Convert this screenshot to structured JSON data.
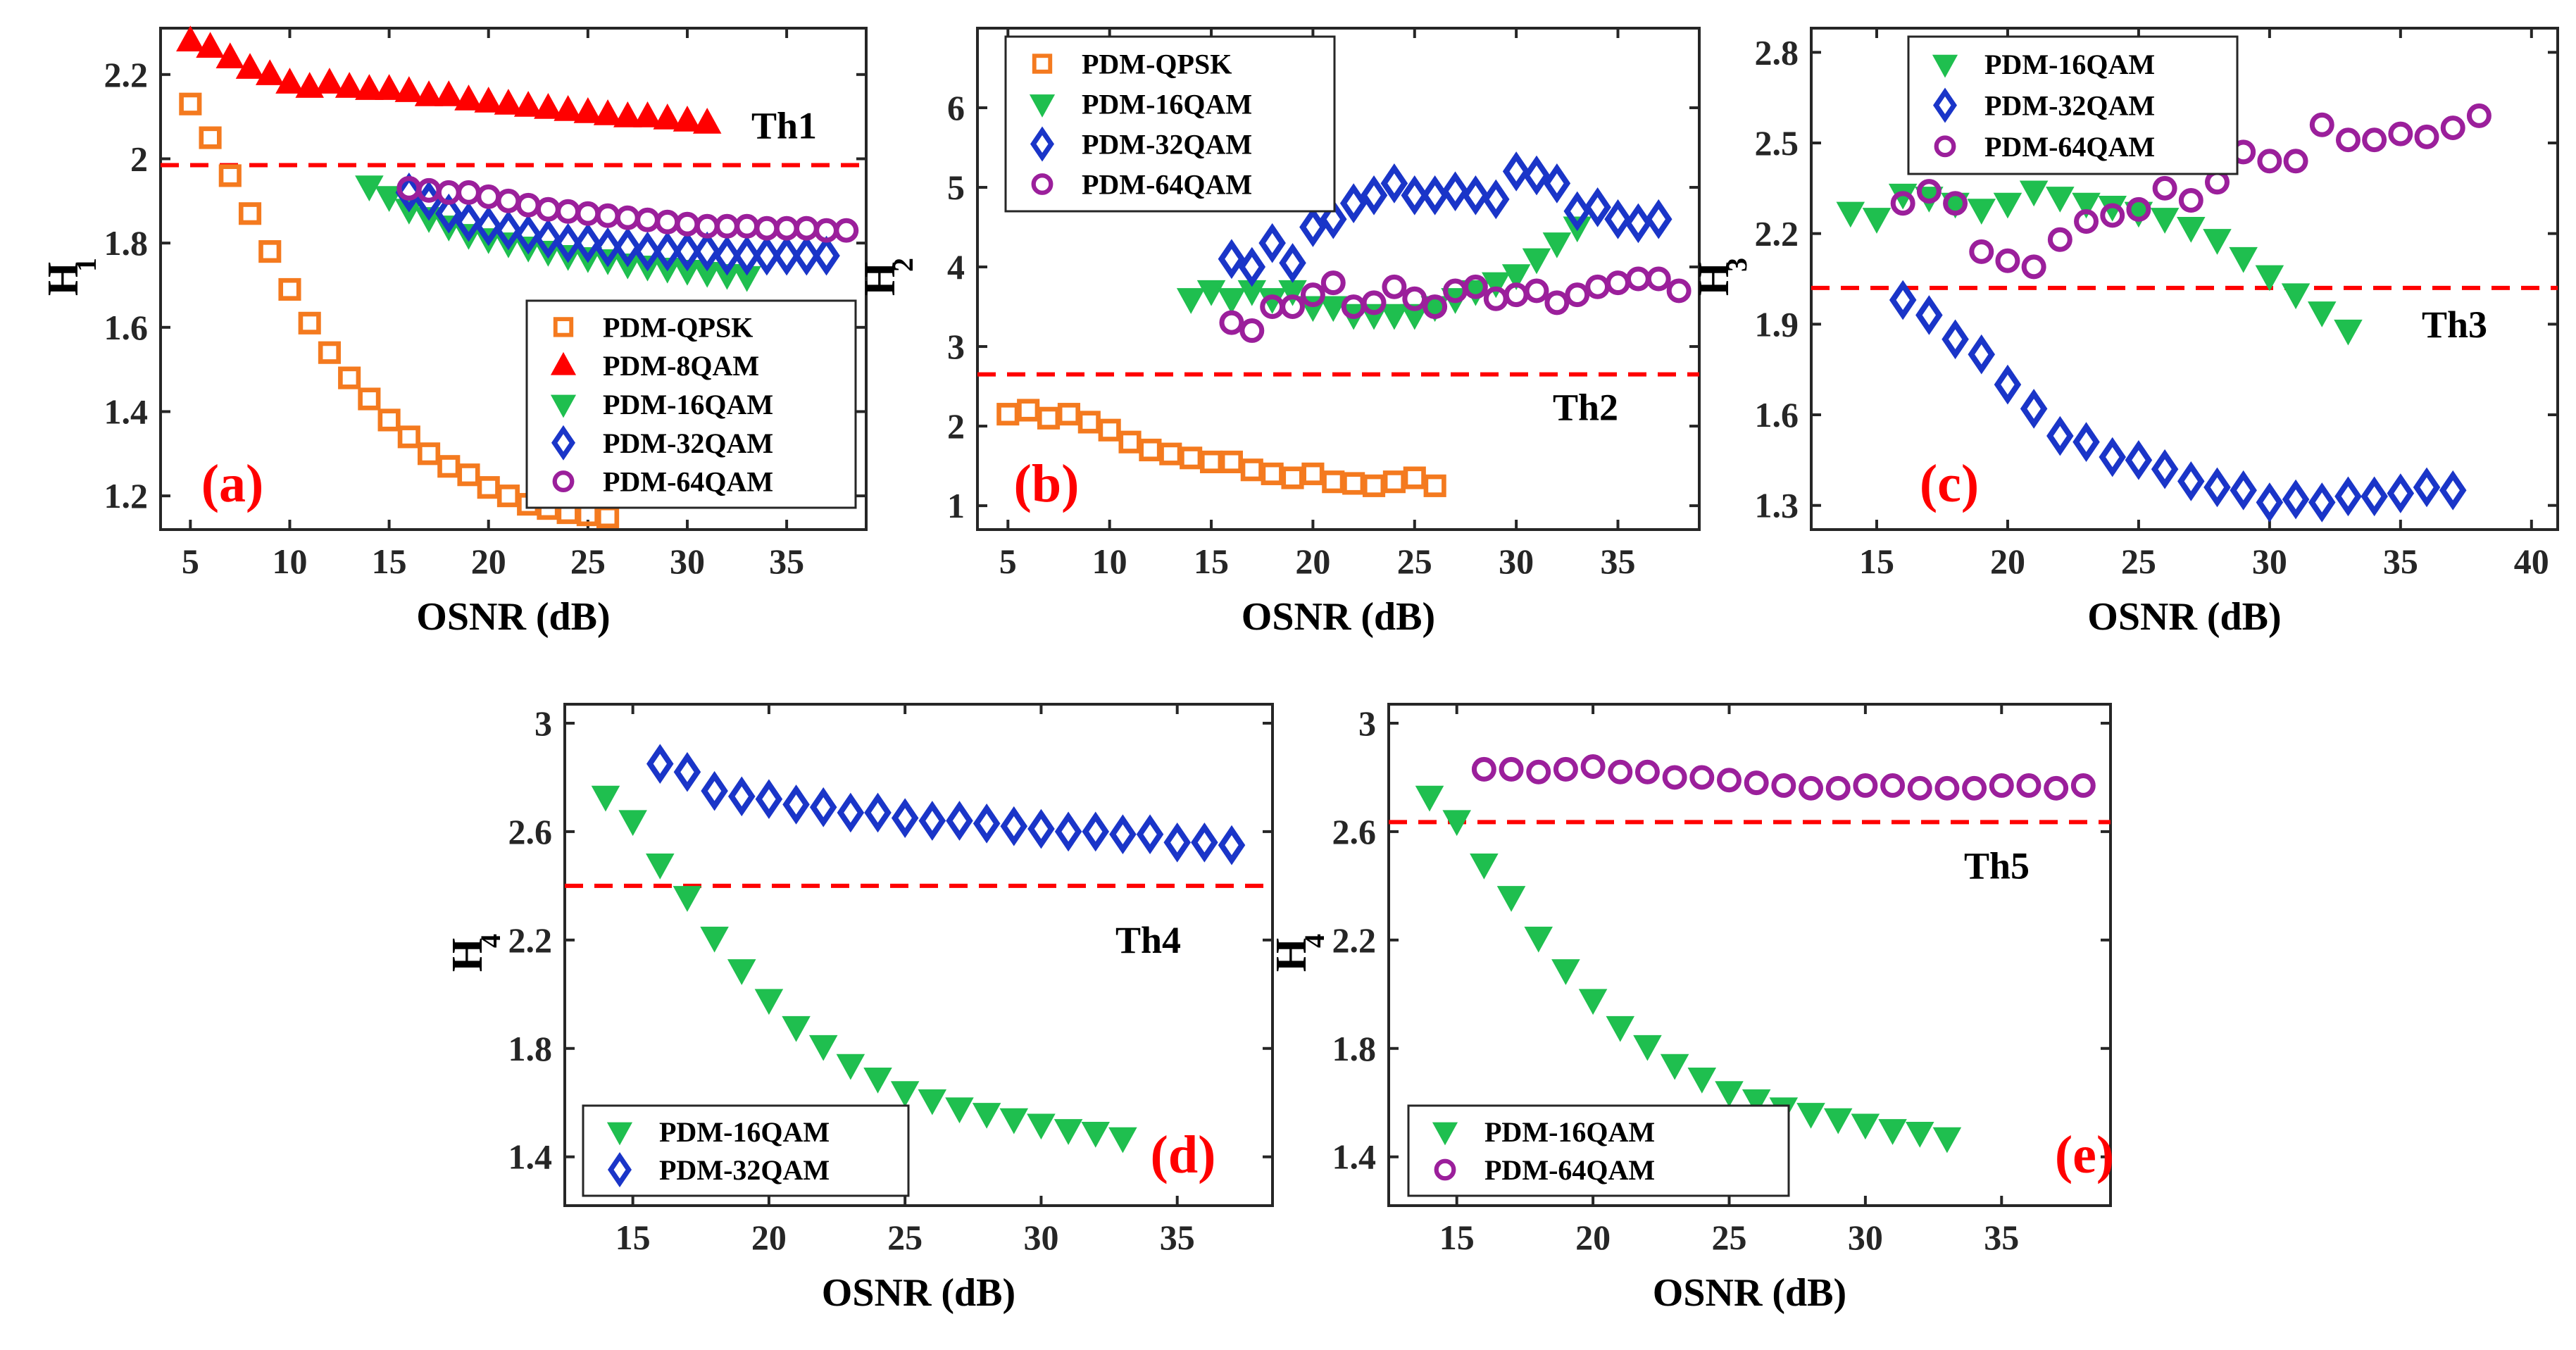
{
  "colors": {
    "PDM-QPSK": "#f47a1f",
    "PDM-8QAM": "#ff0000",
    "PDM-16QAM": "#1fbf4f",
    "PDM-32QAM": "#1a35c8",
    "PDM-64QAM": "#9b1f9b",
    "threshold": "#ff0000"
  },
  "markers": {
    "PDM-QPSK": "square",
    "PDM-8QAM": "triangle-up",
    "PDM-16QAM": "triangle-down",
    "PDM-32QAM": "diamond",
    "PDM-64QAM": "circle"
  },
  "chart_data": [
    {
      "type": "scatter",
      "panel_label": "(a)",
      "xlabel": "OSNR (dB)",
      "ylabel": "H",
      "ylabel_sub": "1",
      "xlim": [
        3.5,
        39
      ],
      "ylim": [
        1.12,
        2.31
      ],
      "xticks": [
        5,
        10,
        15,
        20,
        25,
        30,
        35
      ],
      "yticks": [
        1.2,
        1.4,
        1.6,
        1.8,
        2,
        2.2
      ],
      "ytick_labels": [
        "1.2",
        "1.4",
        "1.6",
        "1.8",
        "2",
        "2.2"
      ],
      "threshold": {
        "label": "Th1",
        "value": 1.985
      },
      "legend_position": "lower-right",
      "series": [
        {
          "name": "PDM-QPSK",
          "x": [
            5,
            6,
            7,
            8,
            9,
            10,
            11,
            12,
            13,
            14,
            15,
            16,
            17,
            18,
            19,
            20,
            21,
            22,
            23,
            24,
            25,
            26
          ],
          "y": [
            2.13,
            2.05,
            1.96,
            1.87,
            1.78,
            1.69,
            1.61,
            1.54,
            1.48,
            1.43,
            1.38,
            1.34,
            1.3,
            1.27,
            1.25,
            1.22,
            1.2,
            1.18,
            1.17,
            1.16,
            1.155,
            1.15
          ]
        },
        {
          "name": "PDM-8QAM",
          "x": [
            5,
            6,
            7,
            8,
            9,
            10,
            11,
            12,
            13,
            14,
            15,
            16,
            17,
            18,
            19,
            20,
            21,
            22,
            23,
            24,
            25,
            26,
            27,
            28,
            29,
            30,
            31
          ],
          "y": [
            2.28,
            2.265,
            2.24,
            2.215,
            2.2,
            2.18,
            2.17,
            2.18,
            2.17,
            2.165,
            2.165,
            2.16,
            2.15,
            2.15,
            2.14,
            2.135,
            2.13,
            2.125,
            2.12,
            2.115,
            2.11,
            2.105,
            2.1,
            2.1,
            2.095,
            2.09,
            2.085
          ]
        },
        {
          "name": "PDM-16QAM",
          "x": [
            14,
            15,
            16,
            17,
            18,
            19,
            20,
            21,
            22,
            23,
            24,
            25,
            26,
            27,
            28,
            29,
            30,
            31,
            32,
            33
          ],
          "y": [
            1.935,
            1.91,
            1.88,
            1.86,
            1.84,
            1.82,
            1.81,
            1.8,
            1.79,
            1.78,
            1.77,
            1.765,
            1.76,
            1.75,
            1.745,
            1.74,
            1.735,
            1.73,
            1.725,
            1.72
          ]
        },
        {
          "name": "PDM-32QAM",
          "x": [
            16,
            17,
            18,
            19,
            20,
            21,
            22,
            23,
            24,
            25,
            26,
            27,
            28,
            29,
            30,
            31,
            32,
            33,
            34,
            35,
            36,
            37
          ],
          "y": [
            1.92,
            1.9,
            1.87,
            1.85,
            1.84,
            1.83,
            1.82,
            1.81,
            1.8,
            1.8,
            1.79,
            1.79,
            1.78,
            1.78,
            1.78,
            1.78,
            1.77,
            1.77,
            1.77,
            1.77,
            1.77,
            1.77
          ]
        },
        {
          "name": "PDM-64QAM",
          "x": [
            16,
            17,
            18,
            19,
            20,
            21,
            22,
            23,
            24,
            25,
            26,
            27,
            28,
            29,
            30,
            31,
            32,
            33,
            34,
            35,
            36,
            37,
            38
          ],
          "y": [
            1.93,
            1.925,
            1.92,
            1.92,
            1.91,
            1.9,
            1.89,
            1.88,
            1.875,
            1.87,
            1.865,
            1.86,
            1.855,
            1.85,
            1.845,
            1.84,
            1.84,
            1.84,
            1.835,
            1.835,
            1.835,
            1.83,
            1.83
          ]
        }
      ]
    },
    {
      "type": "scatter",
      "panel_label": "(b)",
      "xlabel": "OSNR (dB)",
      "ylabel": "H",
      "ylabel_sub": "2",
      "xlim": [
        3.5,
        39
      ],
      "ylim": [
        0.7,
        7.0
      ],
      "xticks": [
        5,
        10,
        15,
        20,
        25,
        30,
        35
      ],
      "yticks": [
        1,
        2,
        3,
        4,
        5,
        6
      ],
      "ytick_labels": [
        "1",
        "2",
        "3",
        "4",
        "5",
        "6"
      ],
      "threshold": {
        "label": "Th2",
        "value": 2.65
      },
      "legend_position": "top-left",
      "series": [
        {
          "name": "PDM-QPSK",
          "x": [
            5,
            6,
            7,
            8,
            9,
            10,
            11,
            12,
            13,
            14,
            15,
            16,
            17,
            18,
            19,
            20,
            21,
            22,
            23,
            24,
            25,
            26
          ],
          "y": [
            2.15,
            2.2,
            2.1,
            2.15,
            2.05,
            1.95,
            1.8,
            1.7,
            1.65,
            1.6,
            1.55,
            1.55,
            1.45,
            1.4,
            1.35,
            1.4,
            1.3,
            1.28,
            1.25,
            1.3,
            1.35,
            1.25
          ]
        },
        {
          "name": "PDM-16QAM",
          "x": [
            14,
            15,
            16,
            17,
            18,
            19,
            20,
            21,
            22,
            23,
            24,
            25,
            26,
            27,
            28,
            29,
            30,
            31,
            32,
            33
          ],
          "y": [
            3.6,
            3.7,
            3.6,
            3.7,
            3.6,
            3.7,
            3.5,
            3.5,
            3.4,
            3.4,
            3.4,
            3.4,
            3.5,
            3.6,
            3.7,
            3.8,
            3.9,
            4.1,
            4.3,
            4.5
          ]
        },
        {
          "name": "PDM-32QAM",
          "x": [
            16,
            17,
            18,
            19,
            20,
            21,
            22,
            23,
            24,
            25,
            26,
            27,
            28,
            29,
            30,
            31,
            32,
            33,
            34,
            35,
            36,
            37
          ],
          "y": [
            4.1,
            4.0,
            4.3,
            4.05,
            4.5,
            4.6,
            4.8,
            4.9,
            5.05,
            4.9,
            4.9,
            4.95,
            4.9,
            4.85,
            5.2,
            5.15,
            5.05,
            4.7,
            4.75,
            4.6,
            4.55,
            4.6
          ]
        },
        {
          "name": "PDM-64QAM",
          "x": [
            16,
            17,
            18,
            19,
            20,
            21,
            22,
            23,
            24,
            25,
            26,
            27,
            28,
            29,
            30,
            31,
            32,
            33,
            34,
            35,
            36,
            37,
            38
          ],
          "y": [
            3.3,
            3.2,
            3.5,
            3.5,
            3.65,
            3.8,
            3.5,
            3.55,
            3.75,
            3.6,
            3.5,
            3.7,
            3.75,
            3.6,
            3.65,
            3.7,
            3.55,
            3.65,
            3.75,
            3.8,
            3.85,
            3.85,
            3.7
          ]
        }
      ]
    },
    {
      "type": "scatter",
      "panel_label": "(c)",
      "xlabel": "OSNR (dB)",
      "ylabel": "H",
      "ylabel_sub": "3",
      "xlim": [
        12.5,
        41
      ],
      "ylim": [
        1.22,
        2.88
      ],
      "xticks": [
        15,
        20,
        25,
        30,
        35,
        40
      ],
      "yticks": [
        1.3,
        1.6,
        1.9,
        2.2,
        2.5,
        2.8
      ],
      "ytick_labels": [
        "1.3",
        "1.6",
        "1.9",
        "2.2",
        "2.5",
        "2.8"
      ],
      "threshold": {
        "label": "Th3",
        "value": 2.02
      },
      "legend_position": "top-left",
      "series": [
        {
          "name": "PDM-16QAM",
          "x": [
            14,
            15,
            16,
            17,
            18,
            19,
            20,
            21,
            22,
            23,
            24,
            25,
            26,
            27,
            28,
            29,
            30,
            31,
            32,
            33
          ],
          "y": [
            2.27,
            2.25,
            2.33,
            2.32,
            2.3,
            2.28,
            2.3,
            2.34,
            2.32,
            2.3,
            2.29,
            2.27,
            2.25,
            2.22,
            2.18,
            2.12,
            2.06,
            2.0,
            1.94,
            1.88
          ]
        },
        {
          "name": "PDM-32QAM",
          "x": [
            16,
            17,
            18,
            19,
            20,
            21,
            22,
            23,
            24,
            25,
            26,
            27,
            28,
            29,
            30,
            31,
            32,
            33,
            34,
            35,
            36,
            37
          ],
          "y": [
            1.98,
            1.93,
            1.85,
            1.8,
            1.7,
            1.62,
            1.53,
            1.51,
            1.46,
            1.45,
            1.42,
            1.38,
            1.36,
            1.35,
            1.31,
            1.32,
            1.31,
            1.33,
            1.33,
            1.34,
            1.36,
            1.35
          ]
        },
        {
          "name": "PDM-64QAM",
          "x": [
            16,
            17,
            18,
            19,
            20,
            21,
            22,
            23,
            24,
            25,
            26,
            27,
            28,
            29,
            30,
            31,
            32,
            33,
            34,
            35,
            36,
            37,
            38
          ],
          "y": [
            2.3,
            2.34,
            2.3,
            2.14,
            2.11,
            2.09,
            2.18,
            2.24,
            2.26,
            2.28,
            2.35,
            2.31,
            2.37,
            2.47,
            2.44,
            2.44,
            2.56,
            2.51,
            2.51,
            2.53,
            2.52,
            2.55,
            2.59
          ]
        }
      ]
    },
    {
      "type": "scatter",
      "panel_label": "(d)",
      "xlabel": "OSNR (dB)",
      "ylabel": "H",
      "ylabel_sub": "4",
      "xlim": [
        12.5,
        38.5
      ],
      "ylim": [
        1.22,
        3.07
      ],
      "xticks": [
        15,
        20,
        25,
        30,
        35
      ],
      "yticks": [
        1.4,
        1.8,
        2.2,
        2.6,
        3.0
      ],
      "ytick_labels": [
        "1.4",
        "1.8",
        "2.2",
        "2.6",
        "3"
      ],
      "threshold": {
        "label": "Th4",
        "value": 2.4
      },
      "legend_position": "bottom-left",
      "series": [
        {
          "name": "PDM-16QAM",
          "x": [
            14,
            15,
            16,
            17,
            18,
            19,
            20,
            21,
            22,
            23,
            24,
            25,
            26,
            27,
            28,
            29,
            30,
            31,
            32,
            33
          ],
          "y": [
            2.73,
            2.64,
            2.48,
            2.36,
            2.21,
            2.09,
            1.98,
            1.88,
            1.81,
            1.74,
            1.69,
            1.64,
            1.61,
            1.58,
            1.56,
            1.54,
            1.52,
            1.5,
            1.49,
            1.47
          ]
        },
        {
          "name": "PDM-32QAM",
          "x": [
            16,
            17,
            18,
            19,
            20,
            21,
            22,
            23,
            24,
            25,
            26,
            27,
            28,
            29,
            30,
            31,
            32,
            33,
            34,
            35,
            36,
            37
          ],
          "y": [
            2.85,
            2.82,
            2.75,
            2.73,
            2.72,
            2.7,
            2.69,
            2.67,
            2.67,
            2.65,
            2.64,
            2.64,
            2.63,
            2.62,
            2.61,
            2.6,
            2.6,
            2.59,
            2.59,
            2.56,
            2.56,
            2.55
          ]
        }
      ]
    },
    {
      "type": "scatter",
      "panel_label": "(e)",
      "xlabel": "OSNR (dB)",
      "ylabel": "H",
      "ylabel_sub": "4",
      "xlim": [
        12.5,
        39
      ],
      "ylim": [
        1.22,
        3.07
      ],
      "xticks": [
        15,
        20,
        25,
        30,
        35
      ],
      "yticks": [
        1.4,
        1.8,
        2.2,
        2.6,
        3.0
      ],
      "ytick_labels": [
        "1.4",
        "1.8",
        "2.2",
        "2.6",
        "3"
      ],
      "threshold": {
        "label": "Th5",
        "value": 2.635
      },
      "legend_position": "bottom-left",
      "series": [
        {
          "name": "PDM-16QAM",
          "x": [
            14,
            15,
            16,
            17,
            18,
            19,
            20,
            21,
            22,
            23,
            24,
            25,
            26,
            27,
            28,
            29,
            30,
            31,
            32,
            33
          ],
          "y": [
            2.73,
            2.64,
            2.48,
            2.36,
            2.21,
            2.09,
            1.98,
            1.88,
            1.81,
            1.74,
            1.69,
            1.64,
            1.61,
            1.58,
            1.56,
            1.54,
            1.52,
            1.5,
            1.49,
            1.47
          ]
        },
        {
          "name": "PDM-64QAM",
          "x": [
            16,
            17,
            18,
            19,
            20,
            21,
            22,
            23,
            24,
            25,
            26,
            27,
            28,
            29,
            30,
            31,
            32,
            33,
            34,
            35,
            36,
            37,
            38
          ],
          "y": [
            2.83,
            2.83,
            2.82,
            2.83,
            2.84,
            2.82,
            2.82,
            2.8,
            2.8,
            2.79,
            2.78,
            2.77,
            2.76,
            2.76,
            2.77,
            2.77,
            2.76,
            2.76,
            2.76,
            2.77,
            2.77,
            2.76,
            2.77
          ]
        }
      ]
    }
  ]
}
